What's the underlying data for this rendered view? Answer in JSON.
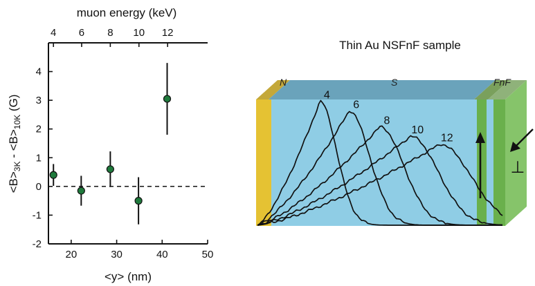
{
  "chart_data": [
    {
      "type": "scatter",
      "xlabel": "<y> (nm)",
      "ylabel": "<B>3K - <B>10K (G)",
      "ylabel_parts": {
        "b1": "<B>",
        "s1": "3K",
        "mid": " - <B>",
        "s2": "10K",
        "unit": " (G)"
      },
      "top_xlabel": "muon energy (keV)",
      "xlim": [
        15,
        50
      ],
      "ylim": [
        -2,
        5
      ],
      "xticks": [
        "20",
        "30",
        "40",
        "50"
      ],
      "yticks": [
        "-2",
        "-1",
        "0",
        "1",
        "2",
        "3",
        "4"
      ],
      "top_ticks": [
        {
          "label": "4",
          "x": 16.1
        },
        {
          "label": "6",
          "x": 22.3
        },
        {
          "label": "8",
          "x": 28.6
        },
        {
          "label": "10",
          "x": 34.9
        },
        {
          "label": "12",
          "x": 41.2
        }
      ],
      "reference_line": 0,
      "points": [
        {
          "x": 16.1,
          "y": 0.4,
          "err": 0.38
        },
        {
          "x": 22.2,
          "y": -0.15,
          "err": 0.52
        },
        {
          "x": 28.6,
          "y": 0.6,
          "err": 0.62
        },
        {
          "x": 34.8,
          "y": -0.5,
          "err": 0.82
        },
        {
          "x": 41.1,
          "y": 3.05,
          "err": 1.25
        }
      ],
      "marker_color": "#1f7a3c"
    },
    {
      "type": "line",
      "title": "Thin Au NSFnF sample",
      "layers": [
        {
          "label": "N",
          "color": "#e5c233"
        },
        {
          "label": "S",
          "color": "#8fcde5"
        },
        {
          "label": "FnF",
          "color": "#6ab04c"
        }
      ],
      "series": [
        {
          "name": "4",
          "peak_depth": 0.255,
          "peak_height": 0.78
        },
        {
          "name": "6",
          "peak_depth": 0.375,
          "peak_height": 0.72
        },
        {
          "name": "8",
          "peak_depth": 0.5,
          "peak_height": 0.62
        },
        {
          "name": "10",
          "peak_depth": 0.625,
          "peak_height": 0.56
        },
        {
          "name": "12",
          "peak_depth": 0.745,
          "peak_height": 0.51
        }
      ],
      "arrows": [
        "up",
        "in-plane-perpendicular"
      ],
      "perp_symbol": "⊥"
    }
  ]
}
